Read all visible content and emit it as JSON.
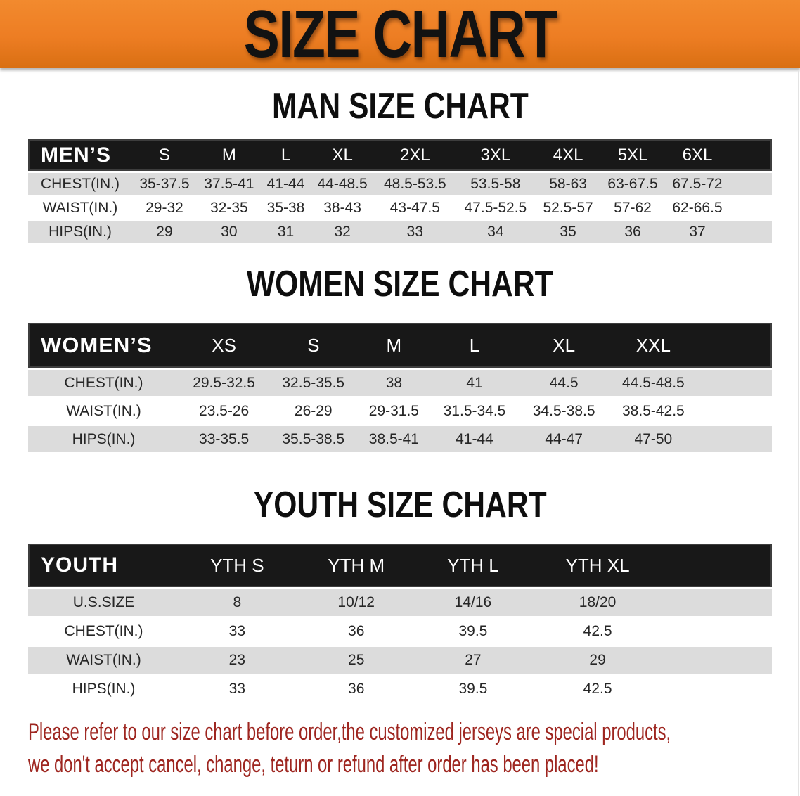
{
  "colors": {
    "banner_orange": "#ED7D23",
    "header_black": "#181818",
    "row_gray": "#DCDCDC",
    "text_dark": "#262626",
    "disclaimer_red": "#9E2620"
  },
  "banner": {
    "title": "SIZE CHART"
  },
  "sections": [
    {
      "heading": "MAN SIZE CHART",
      "table": {
        "header_label": "MEN’S",
        "columns": [
          "S",
          "M",
          "L",
          "XL",
          "2XL",
          "3XL",
          "4XL",
          "5XL",
          "6XL"
        ],
        "rows": [
          {
            "label": "CHEST(IN.)",
            "values": [
              "35-37.5",
              "37.5-41",
              "41-44",
              "44-48.5",
              "48.5-53.5",
              "53.5-58",
              "58-63",
              "63-67.5",
              "67.5-72"
            ]
          },
          {
            "label": "WAIST(IN.)",
            "values": [
              "29-32",
              "32-35",
              "35-38",
              "38-43",
              "43-47.5",
              "47.5-52.5",
              "52.5-57",
              "57-62",
              "62-66.5"
            ]
          },
          {
            "label": "HIPS(IN.)",
            "values": [
              "29",
              "30",
              "31",
              "32",
              "33",
              "34",
              "35",
              "36",
              "37"
            ]
          }
        ]
      }
    },
    {
      "heading": "WOMEN SIZE CHART",
      "table": {
        "header_label": "WOMEN’S",
        "columns": [
          "XS",
          "S",
          "M",
          "L",
          "XL",
          "XXL"
        ],
        "rows": [
          {
            "label": "CHEST(IN.)",
            "values": [
              "29.5-32.5",
              "32.5-35.5",
              "38",
              "41",
              "44.5",
              "44.5-48.5"
            ]
          },
          {
            "label": "WAIST(IN.)",
            "values": [
              "23.5-26",
              "26-29",
              "29-31.5",
              "31.5-34.5",
              "34.5-38.5",
              "38.5-42.5"
            ]
          },
          {
            "label": "HIPS(IN.)",
            "values": [
              "33-35.5",
              "35.5-38.5",
              "38.5-41",
              "41-44",
              "44-47",
              "47-50"
            ]
          }
        ]
      }
    },
    {
      "heading": "YOUTH SIZE CHART",
      "table": {
        "header_label": "YOUTH",
        "columns": [
          "YTH S",
          "YTH M",
          "YTH L",
          "YTH XL"
        ],
        "rows": [
          {
            "label": "U.S.SIZE",
            "values": [
              "8",
              "10/12",
              "14/16",
              "18/20"
            ]
          },
          {
            "label": "CHEST(IN.)",
            "values": [
              "33",
              "36",
              "39.5",
              "42.5"
            ]
          },
          {
            "label": "WAIST(IN.)",
            "values": [
              "23",
              "25",
              "27",
              "29"
            ]
          },
          {
            "label": "HIPS(IN.)",
            "values": [
              "33",
              "36",
              "39.5",
              "42.5"
            ]
          }
        ]
      }
    }
  ],
  "disclaimer": {
    "line1": "Please refer to our size chart before order,the customized jerseys are special products,",
    "line2": "we don't accept cancel, change, teturn or refund after order has been placed!"
  }
}
